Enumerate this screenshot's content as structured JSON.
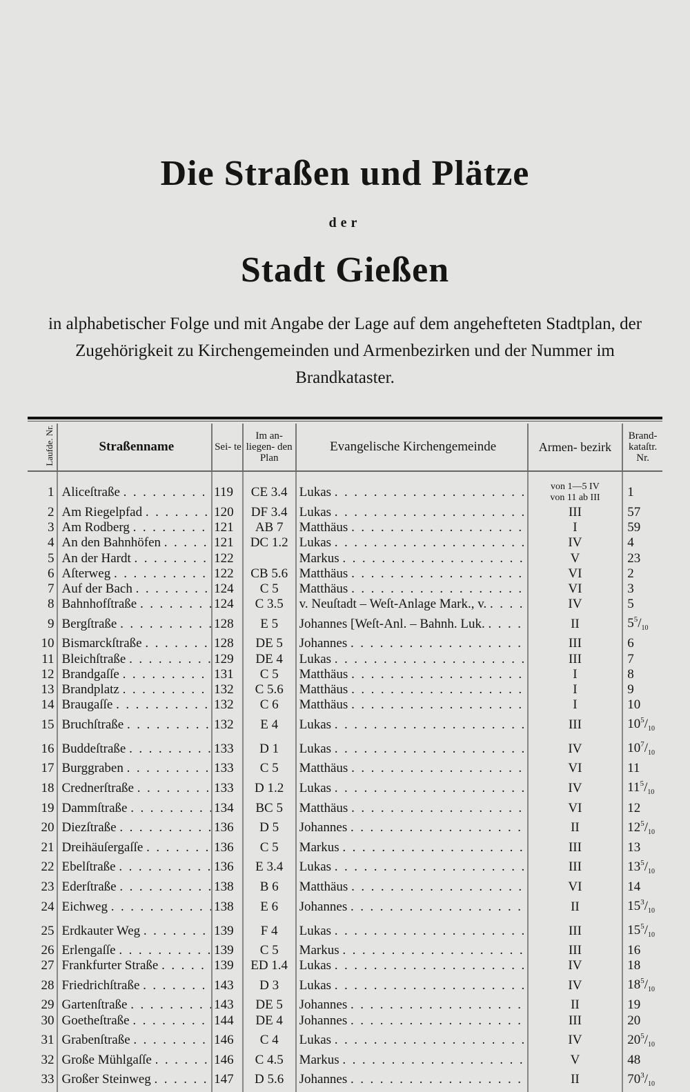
{
  "title": {
    "line1": "Die Straßen und Plätze",
    "line2": "der",
    "line3": "Stadt Gießen"
  },
  "intro": "in alphabetischer Folge und mit Angabe der Lage auf dem angehefteten Stadtplan, der Zugehörigkeit zu Kirchengemeinden und Armenbezirken und der Nummer im Brandkataster.",
  "headers": {
    "nr": "Laufde. Nr.",
    "name": "Straßenname",
    "seite": "Sei- te",
    "plan": "Im an- liegen- den Plan",
    "kirche": "Evangelische Kirchengemeinde",
    "armen": "Armen- bezirk",
    "brand": "Brand- kataſtr. Nr."
  },
  "rows": [
    {
      "nr": "1",
      "name": "Aliceſtraße",
      "seite": "119",
      "plan": "CE 3.4",
      "kirche": "Lukas",
      "armen": "von 1—5 IV\nvon 11 ab III",
      "brand": "1",
      "frac_num": "",
      "frac_den": ""
    },
    {
      "nr": "2",
      "name": "Am Riegelpfad",
      "seite": "120",
      "plan": "DF 3.4",
      "kirche": "Lukas",
      "armen": "III",
      "brand": "57",
      "frac_num": "",
      "frac_den": ""
    },
    {
      "nr": "3",
      "name": "Am Rodberg",
      "seite": "121",
      "plan": "AB 7",
      "kirche": "Matthäus",
      "armen": "I",
      "brand": "59",
      "frac_num": "",
      "frac_den": ""
    },
    {
      "nr": "4",
      "name": "An den Bahnhöfen",
      "seite": "121",
      "plan": "DC 1.2",
      "kirche": "Lukas",
      "armen": "IV",
      "brand": "4",
      "frac_num": "",
      "frac_den": ""
    },
    {
      "nr": "5",
      "name": "An der Hardt",
      "seite": "122",
      "plan": "",
      "kirche": "Markus",
      "armen": "V",
      "brand": "23",
      "frac_num": "",
      "frac_den": ""
    },
    {
      "nr": "6",
      "name": "Aſterweg",
      "seite": "122",
      "plan": "CB 5.6",
      "kirche": "Matthäus",
      "armen": "VI",
      "brand": "2",
      "frac_num": "",
      "frac_den": ""
    },
    {
      "nr": "7",
      "name": "Auf der Bach",
      "seite": "124",
      "plan": "C 5",
      "kirche": "Matthäus",
      "armen": "VI",
      "brand": "3",
      "frac_num": "",
      "frac_den": ""
    },
    {
      "nr": "8",
      "name": "Bahnhofſtraße",
      "seite": "124",
      "plan": "C 3.5",
      "kirche": "v. Neuſtadt – Weſt-Anlage Mark., v.",
      "armen": "IV",
      "brand": "5",
      "frac_num": "",
      "frac_den": ""
    },
    {
      "nr": "9",
      "name": "Bergſtraße",
      "seite": "128",
      "plan": "E 5",
      "kirche": "Johannes [Weſt-Anl. – Bahnh. Luk.",
      "armen": "II",
      "brand": "5",
      "frac_num": "5",
      "frac_den": "10"
    },
    {
      "nr": "10",
      "name": "Bismarckſtraße",
      "seite": "128",
      "plan": "DE 5",
      "kirche": "Johannes",
      "armen": "III",
      "brand": "6",
      "frac_num": "",
      "frac_den": ""
    },
    {
      "nr": "11",
      "name": "Bleichſtraße",
      "seite": "129",
      "plan": "DE 4",
      "kirche": "Lukas",
      "armen": "III",
      "brand": "7",
      "frac_num": "",
      "frac_den": ""
    },
    {
      "nr": "12",
      "name": "Brandgaſſe",
      "seite": "131",
      "plan": "C 5",
      "kirche": "Matthäus",
      "armen": "I",
      "brand": "8",
      "frac_num": "",
      "frac_den": ""
    },
    {
      "nr": "13",
      "name": "Brandplatz",
      "seite": "132",
      "plan": "C 5.6",
      "kirche": "Matthäus",
      "armen": "I",
      "brand": "9",
      "frac_num": "",
      "frac_den": ""
    },
    {
      "nr": "14",
      "name": "Braugaſſe",
      "seite": "132",
      "plan": "C 6",
      "kirche": "Matthäus",
      "armen": "I",
      "brand": "10",
      "frac_num": "",
      "frac_den": ""
    },
    {
      "nr": "15",
      "name": "Bruchſtraße",
      "seite": "132",
      "plan": "E 4",
      "kirche": "Lukas",
      "armen": "III",
      "brand": "10",
      "frac_num": "5",
      "frac_den": "10"
    },
    {
      "nr": "16",
      "name": "Buddeſtraße",
      "seite": "133",
      "plan": "D 1",
      "kirche": "Lukas",
      "armen": "IV",
      "brand": "10",
      "frac_num": "7",
      "frac_den": "10"
    },
    {
      "nr": "17",
      "name": "Burggraben",
      "seite": "133",
      "plan": "C 5",
      "kirche": "Matthäus",
      "armen": "VI",
      "brand": "11",
      "frac_num": "",
      "frac_den": ""
    },
    {
      "nr": "18",
      "name": "Crednerſtraße",
      "seite": "133",
      "plan": "D 1.2",
      "kirche": "Lukas",
      "armen": "IV",
      "brand": "11",
      "frac_num": "5",
      "frac_den": "10"
    },
    {
      "nr": "19",
      "name": "Dammſtraße",
      "seite": "134",
      "plan": "BC 5",
      "kirche": "Matthäus",
      "armen": "VI",
      "brand": "12",
      "frac_num": "",
      "frac_den": ""
    },
    {
      "nr": "20",
      "name": "Diezſtraße",
      "seite": "136",
      "plan": "D 5",
      "kirche": "Johannes",
      "armen": "II",
      "brand": "12",
      "frac_num": "5",
      "frac_den": "10"
    },
    {
      "nr": "21",
      "name": "Dreihäuſergaſſe",
      "seite": "136",
      "plan": "C 5",
      "kirche": "Markus",
      "armen": "III",
      "brand": "13",
      "frac_num": "",
      "frac_den": ""
    },
    {
      "nr": "22",
      "name": "Ebelſtraße",
      "seite": "136",
      "plan": "E 3.4",
      "kirche": "Lukas",
      "armen": "III",
      "brand": "13",
      "frac_num": "5",
      "frac_den": "10"
    },
    {
      "nr": "23",
      "name": "Ederſtraße",
      "seite": "138",
      "plan": "B 6",
      "kirche": "Matthäus",
      "armen": "VI",
      "brand": "14",
      "frac_num": "",
      "frac_den": ""
    },
    {
      "nr": "24",
      "name": "Eichweg",
      "seite": "138",
      "plan": "E 6",
      "kirche": "Johannes",
      "armen": "II",
      "brand": "15",
      "frac_num": "3",
      "frac_den": "10"
    },
    {
      "nr": "25",
      "name": "Erdkauter Weg",
      "seite": "139",
      "plan": "F 4",
      "kirche": "Lukas",
      "armen": "III",
      "brand": "15",
      "frac_num": "5",
      "frac_den": "10"
    },
    {
      "nr": "26",
      "name": "Erlengaſſe",
      "seite": "139",
      "plan": "C 5",
      "kirche": "Markus",
      "armen": "III",
      "brand": "16",
      "frac_num": "",
      "frac_den": ""
    },
    {
      "nr": "27",
      "name": "Frankfurter Straße",
      "seite": "139",
      "plan": "ED 1.4",
      "kirche": "Lukas",
      "armen": "IV",
      "brand": "18",
      "frac_num": "",
      "frac_den": ""
    },
    {
      "nr": "28",
      "name": "Friedrichſtraße",
      "seite": "143",
      "plan": "D 3",
      "kirche": "Lukas",
      "armen": "IV",
      "brand": "18",
      "frac_num": "5",
      "frac_den": "10"
    },
    {
      "nr": "29",
      "name": "Gartenſtraße",
      "seite": "143",
      "plan": "DE 5",
      "kirche": "Johannes",
      "armen": "II",
      "brand": "19",
      "frac_num": "",
      "frac_den": ""
    },
    {
      "nr": "30",
      "name": "Goetheſtraße",
      "seite": "144",
      "plan": "DE 4",
      "kirche": "Johannes",
      "armen": "III",
      "brand": "20",
      "frac_num": "",
      "frac_den": ""
    },
    {
      "nr": "31",
      "name": "Grabenſtraße",
      "seite": "146",
      "plan": "C 4",
      "kirche": "Lukas",
      "armen": "IV",
      "brand": "20",
      "frac_num": "5",
      "frac_den": "10"
    },
    {
      "nr": "32",
      "name": "Große Mühlgaſſe",
      "seite": "146",
      "plan": "C 4.5",
      "kirche": "Markus",
      "armen": "V",
      "brand": "48",
      "frac_num": "",
      "frac_den": ""
    },
    {
      "nr": "33",
      "name": "Großer Steinweg",
      "seite": "147",
      "plan": "D 5.6",
      "kirche": "Johannes",
      "armen": "II",
      "brand": "70",
      "frac_num": "3",
      "frac_den": "10"
    }
  ]
}
